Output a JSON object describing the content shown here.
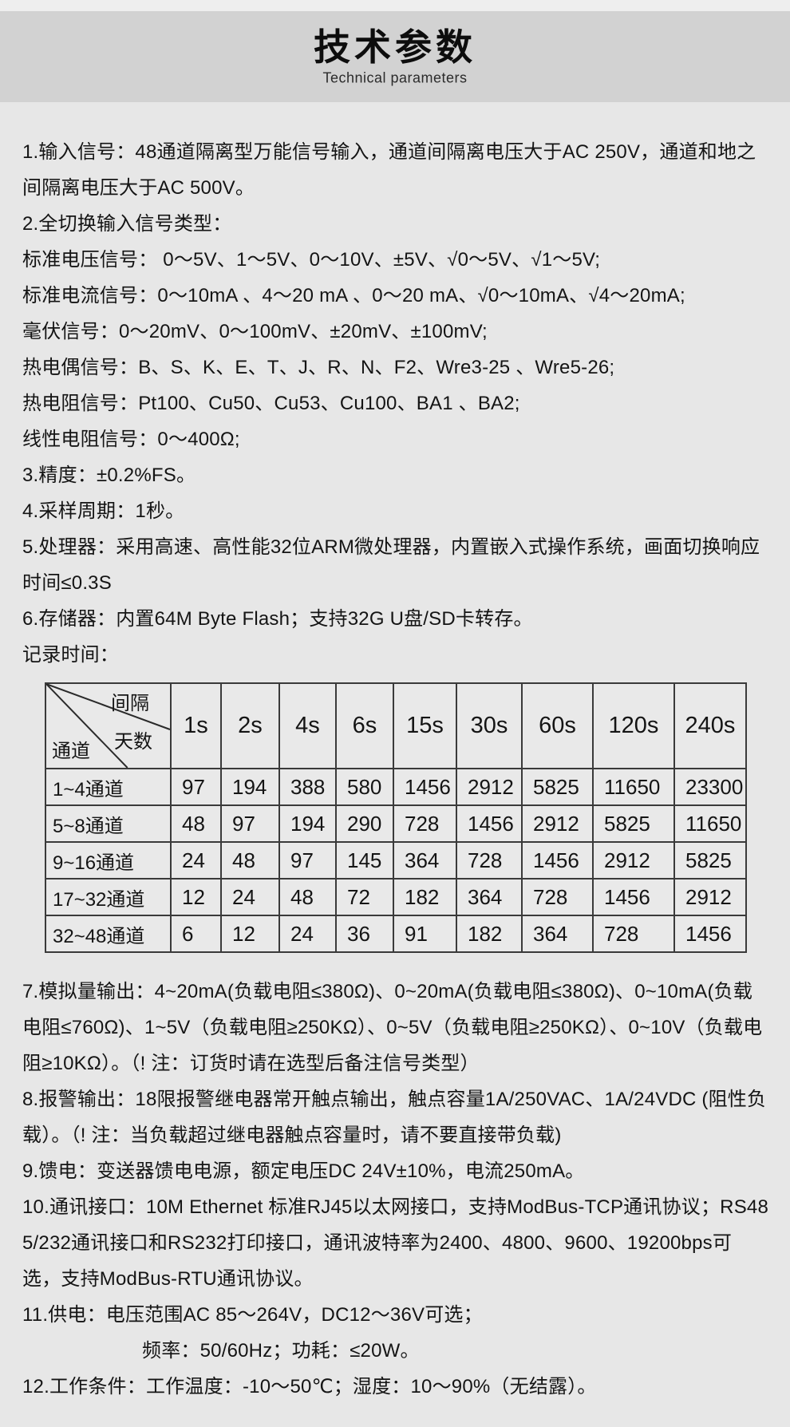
{
  "colors": {
    "page_bg": "#e7e7e7",
    "header_band_bg": "#d2d2d2",
    "top_strip_bg": "#eeeeee",
    "text": "#141414",
    "table_border": "#3a3a3a"
  },
  "header": {
    "title": "技术参数",
    "subtitle": "Technical parameters"
  },
  "specs_top": [
    {
      "text": "1.输入信号：48通道隔离型万能信号输入，通道间隔离电压大于AC 250V，通道和地之间隔离电压大于AC 500V。"
    },
    {
      "text": "2.全切换输入信号类型："
    },
    {
      "text": "标准电压信号： 0～5V、1～5V、0～10V、±5V、√0～5V、√1～5V;"
    },
    {
      "text": "标准电流信号：0～10mA 、4～20 mA 、0～20 mA、√0～10mA、√4～20mA;"
    },
    {
      "text": "毫伏信号：0～20mV、0～100mV、±20mV、±100mV;"
    },
    {
      "text": "热电偶信号：B、S、K、E、T、J、R、N、F2、Wre3-25 、Wre5-26;"
    },
    {
      "text": "热电阻信号：Pt100、Cu50、Cu53、Cu100、BA1 、BA2;"
    },
    {
      "text": "线性电阻信号：0～400Ω;"
    },
    {
      "text": "3.精度：±0.2%FS。"
    },
    {
      "text": "4.采样周期：1秒。"
    },
    {
      "text": "5.处理器：采用高速、高性能32位ARM微处理器，内置嵌入式操作系统，画面切换响应时间≤0.3S"
    },
    {
      "text": "6.存储器：内置64M Byte Flash；支持32G U盘/SD卡转存。"
    },
    {
      "text": "记录时间："
    }
  ],
  "record_table": {
    "corner_top": "间隔",
    "corner_mid": "天数",
    "corner_bottom": "通道",
    "columns": [
      "1s",
      "2s",
      "4s",
      "6s",
      "15s",
      "30s",
      "60s",
      "120s",
      "240s"
    ],
    "rows": [
      {
        "label": "1~4通道",
        "values": [
          "97",
          "194",
          "388",
          "580",
          "1456",
          "2912",
          "5825",
          "11650",
          "23300"
        ]
      },
      {
        "label": "5~8通道",
        "values": [
          "48",
          "97",
          "194",
          "290",
          "728",
          "1456",
          "2912",
          "5825",
          "11650"
        ]
      },
      {
        "label": "9~16通道",
        "values": [
          "24",
          "48",
          "97",
          "145",
          "364",
          "728",
          "1456",
          "2912",
          "5825"
        ]
      },
      {
        "label": "17~32通道",
        "values": [
          "12",
          "24",
          "48",
          "72",
          "182",
          "364",
          "728",
          "1456",
          "2912"
        ]
      },
      {
        "label": "32~48通道",
        "values": [
          "6",
          "12",
          "24",
          "36",
          "91",
          "182",
          "364",
          "728",
          "1456"
        ]
      }
    ]
  },
  "specs_bottom": [
    {
      "text": "7.模拟量输出：4~20mA(负载电阻≤380Ω)、0~20mA(负载电阻≤380Ω)、0~10mA(负载电阻≤760Ω)、1~5V（负载电阻≥250KΩ）、0~5V（负载电阻≥250KΩ）、0~10V（负载电阻≥10KΩ）。（! 注：订货时请在选型后备注信号类型）"
    },
    {
      "text": "8.报警输出：18限报警继电器常开触点输出，触点容量1A/250VAC、1A/24VDC (阻性负载）。（! 注：当负载超过继电器触点容量时，请不要直接带负载)"
    },
    {
      "text": "9.馈电：变送器馈电电源，额定电压DC 24V±10%，电流250mA。"
    },
    {
      "text": "10.通讯接口：10M  Ethernet 标准RJ45以太网接口，支持ModBus-TCP通讯协议；RS485/232通讯接口和RS232打印接口，通讯波特率为2400、4800、9600、19200bps可选，支持ModBus-RTU通讯协议。"
    },
    {
      "text": "11.供电：电压范围AC 85～264V，DC12～36V可选；"
    },
    {
      "text": "频率：50/60Hz；功耗：≤20W。",
      "indent": true
    },
    {
      "text": "12.工作条件：工作温度：-10～50℃；湿度：10～90%（无结露）。"
    }
  ]
}
